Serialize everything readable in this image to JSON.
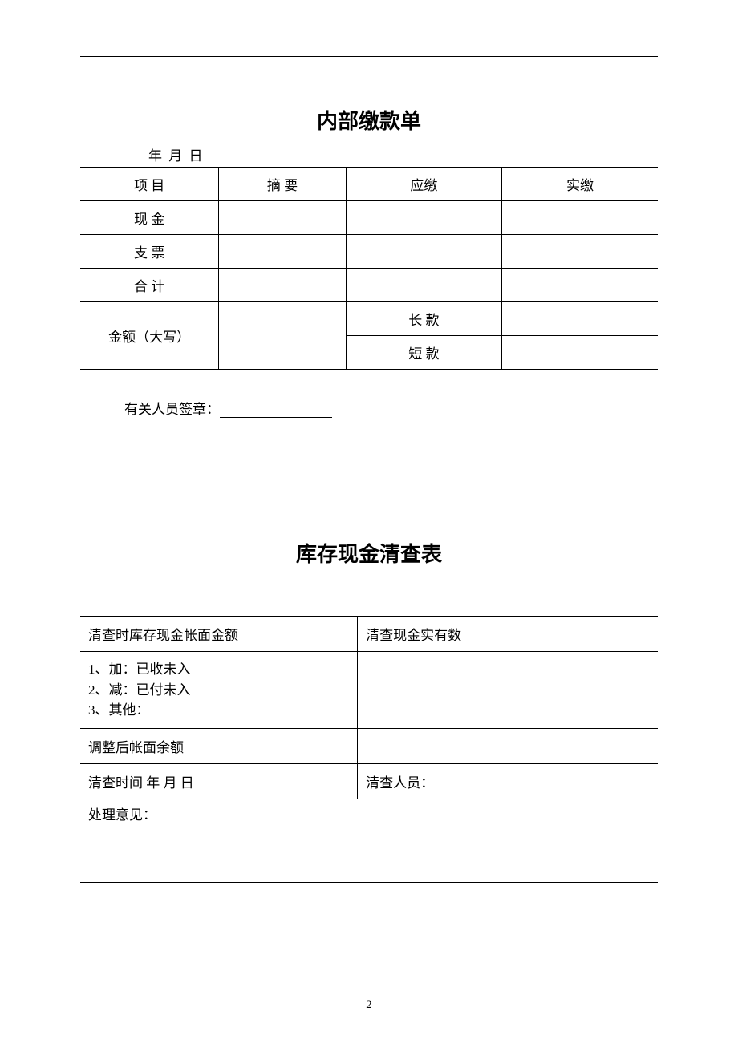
{
  "top_divider": true,
  "form1": {
    "title": "内部缴款单",
    "date_line": "年   月     日",
    "headers": {
      "c1": "项  目",
      "c2": "摘  要",
      "c3": "应缴",
      "c4": "实缴"
    },
    "rows": {
      "cash": "现  金",
      "check": "支  票",
      "total": "合  计",
      "amount_words": "金额（大写）",
      "long": "长  款",
      "short": "短  款"
    },
    "signature_label": "有关人员签章："
  },
  "form2": {
    "title": "库存现金清查表",
    "r1c1": "清查时库存现金帐面金额",
    "r1c2": "清查现金实有数",
    "r2c1_line1": "1、加：已收未入",
    "r2c1_line2": "2、减：已付未入",
    "r2c1_line3": "3、其他：",
    "r3c1": "调整后帐面余额",
    "r4c1": "清查时间      年    月    日",
    "r4c2": "清查人员：",
    "opinion": "处理意见："
  },
  "page_number": "2",
  "colors": {
    "bg": "#ffffff",
    "text": "#000000",
    "border": "#000000"
  }
}
